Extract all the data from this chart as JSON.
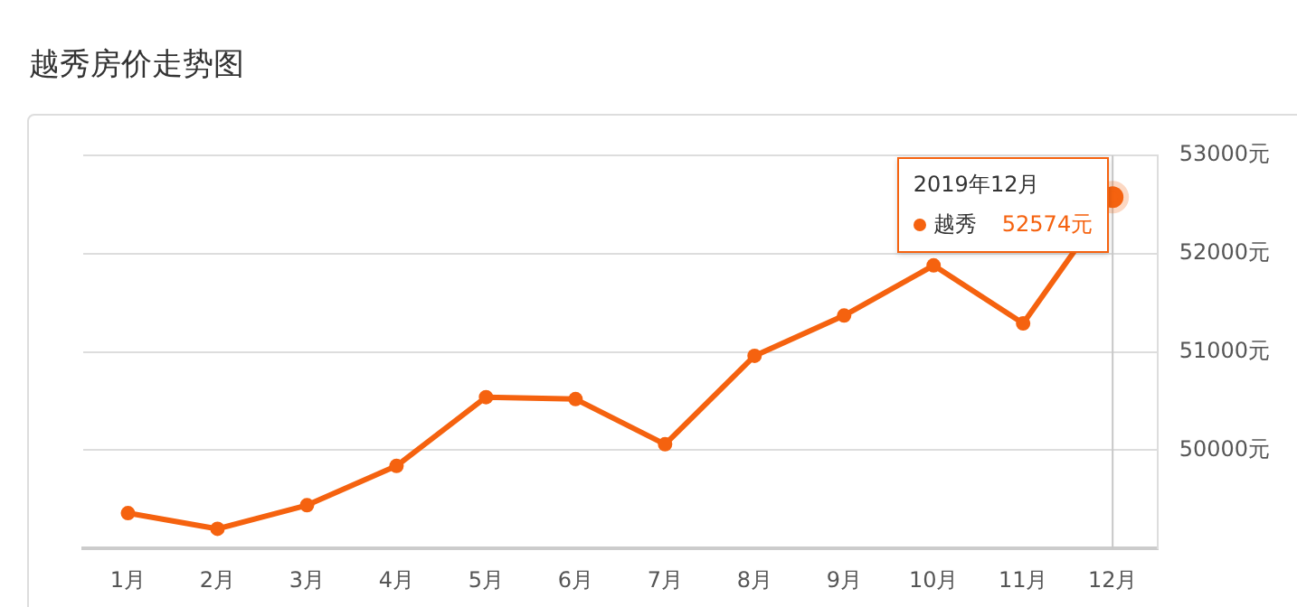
{
  "chart_data": {
    "type": "line",
    "title": "越秀房价走势图",
    "categories": [
      "1月",
      "2月",
      "3月",
      "4月",
      "5月",
      "6月",
      "7月",
      "8月",
      "9月",
      "10月",
      "11月",
      "12月"
    ],
    "series": [
      {
        "name": "越秀",
        "color": "#f5620f",
        "values": [
          49360,
          49200,
          49440,
          49840,
          50540,
          50520,
          50060,
          50960,
          51370,
          51880,
          51290,
          52574
        ],
        "value_labels": [
          null,
          null,
          null,
          null,
          null,
          null,
          null,
          null,
          null,
          null,
          null,
          "52574元"
        ]
      }
    ],
    "ylim": [
      49000,
      53000
    ],
    "yticks": [
      {
        "value": 49000,
        "label": null
      },
      {
        "value": 50000,
        "label": "50000元"
      },
      {
        "value": 51000,
        "label": "51000元"
      },
      {
        "value": 52000,
        "label": "52000元"
      },
      {
        "value": 53000,
        "label": "53000元"
      }
    ],
    "annotations": [
      "2019年12月"
    ],
    "ref_lines": [
      {
        "axis": "x",
        "value": "12月",
        "color": "#c8c8c8"
      }
    ],
    "grid": "y",
    "marker": "circle",
    "line_style": "solid",
    "legend": "top right"
  }
}
